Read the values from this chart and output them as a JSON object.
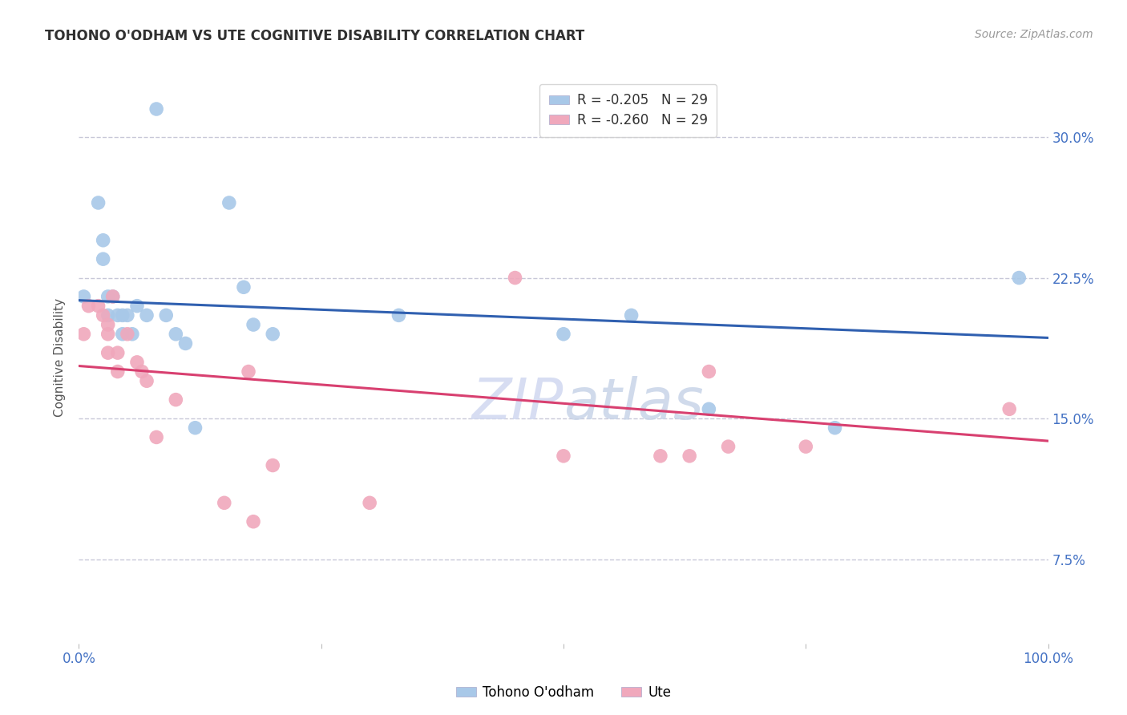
{
  "title": "TOHONO O'ODHAM VS UTE COGNITIVE DISABILITY CORRELATION CHART",
  "source": "Source: ZipAtlas.com",
  "ylabel": "Cognitive Disability",
  "ytick_labels": [
    "7.5%",
    "15.0%",
    "22.5%",
    "30.0%"
  ],
  "ytick_values": [
    0.075,
    0.15,
    0.225,
    0.3
  ],
  "xlim": [
    0.0,
    1.0
  ],
  "ylim": [
    0.03,
    0.335
  ],
  "legend_entry1": "R = -0.205   N = 29",
  "legend_entry2": "R = -0.260   N = 29",
  "legend_label1": "Tohono O'odham",
  "legend_label2": "Ute",
  "blue_color": "#a8c8e8",
  "pink_color": "#f0a8bc",
  "blue_line_color": "#3060b0",
  "pink_line_color": "#d84070",
  "background_color": "#ffffff",
  "grid_color": "#c8c8d8",
  "title_color": "#303030",
  "axis_label_color": "#4472c4",
  "tohono_x": [
    0.005,
    0.02,
    0.025,
    0.025,
    0.03,
    0.03,
    0.035,
    0.04,
    0.045,
    0.045,
    0.05,
    0.055,
    0.06,
    0.07,
    0.08,
    0.09,
    0.1,
    0.11,
    0.12,
    0.155,
    0.17,
    0.18,
    0.2,
    0.33,
    0.5,
    0.57,
    0.65,
    0.78,
    0.97
  ],
  "tohono_y": [
    0.215,
    0.265,
    0.245,
    0.235,
    0.215,
    0.205,
    0.215,
    0.205,
    0.205,
    0.195,
    0.205,
    0.195,
    0.21,
    0.205,
    0.315,
    0.205,
    0.195,
    0.19,
    0.145,
    0.265,
    0.22,
    0.2,
    0.195,
    0.205,
    0.195,
    0.205,
    0.155,
    0.145,
    0.225
  ],
  "ute_x": [
    0.005,
    0.01,
    0.02,
    0.025,
    0.03,
    0.03,
    0.03,
    0.035,
    0.04,
    0.04,
    0.05,
    0.06,
    0.065,
    0.07,
    0.08,
    0.1,
    0.15,
    0.175,
    0.18,
    0.2,
    0.3,
    0.45,
    0.5,
    0.6,
    0.63,
    0.65,
    0.67,
    0.75,
    0.96
  ],
  "ute_y": [
    0.195,
    0.21,
    0.21,
    0.205,
    0.2,
    0.195,
    0.185,
    0.215,
    0.185,
    0.175,
    0.195,
    0.18,
    0.175,
    0.17,
    0.14,
    0.16,
    0.105,
    0.175,
    0.095,
    0.125,
    0.105,
    0.225,
    0.13,
    0.13,
    0.13,
    0.175,
    0.135,
    0.135,
    0.155
  ],
  "blue_trendline_x": [
    0.0,
    1.0
  ],
  "blue_trendline_y": [
    0.213,
    0.193
  ],
  "pink_trendline_x": [
    0.0,
    1.0
  ],
  "pink_trendline_y": [
    0.178,
    0.138
  ]
}
